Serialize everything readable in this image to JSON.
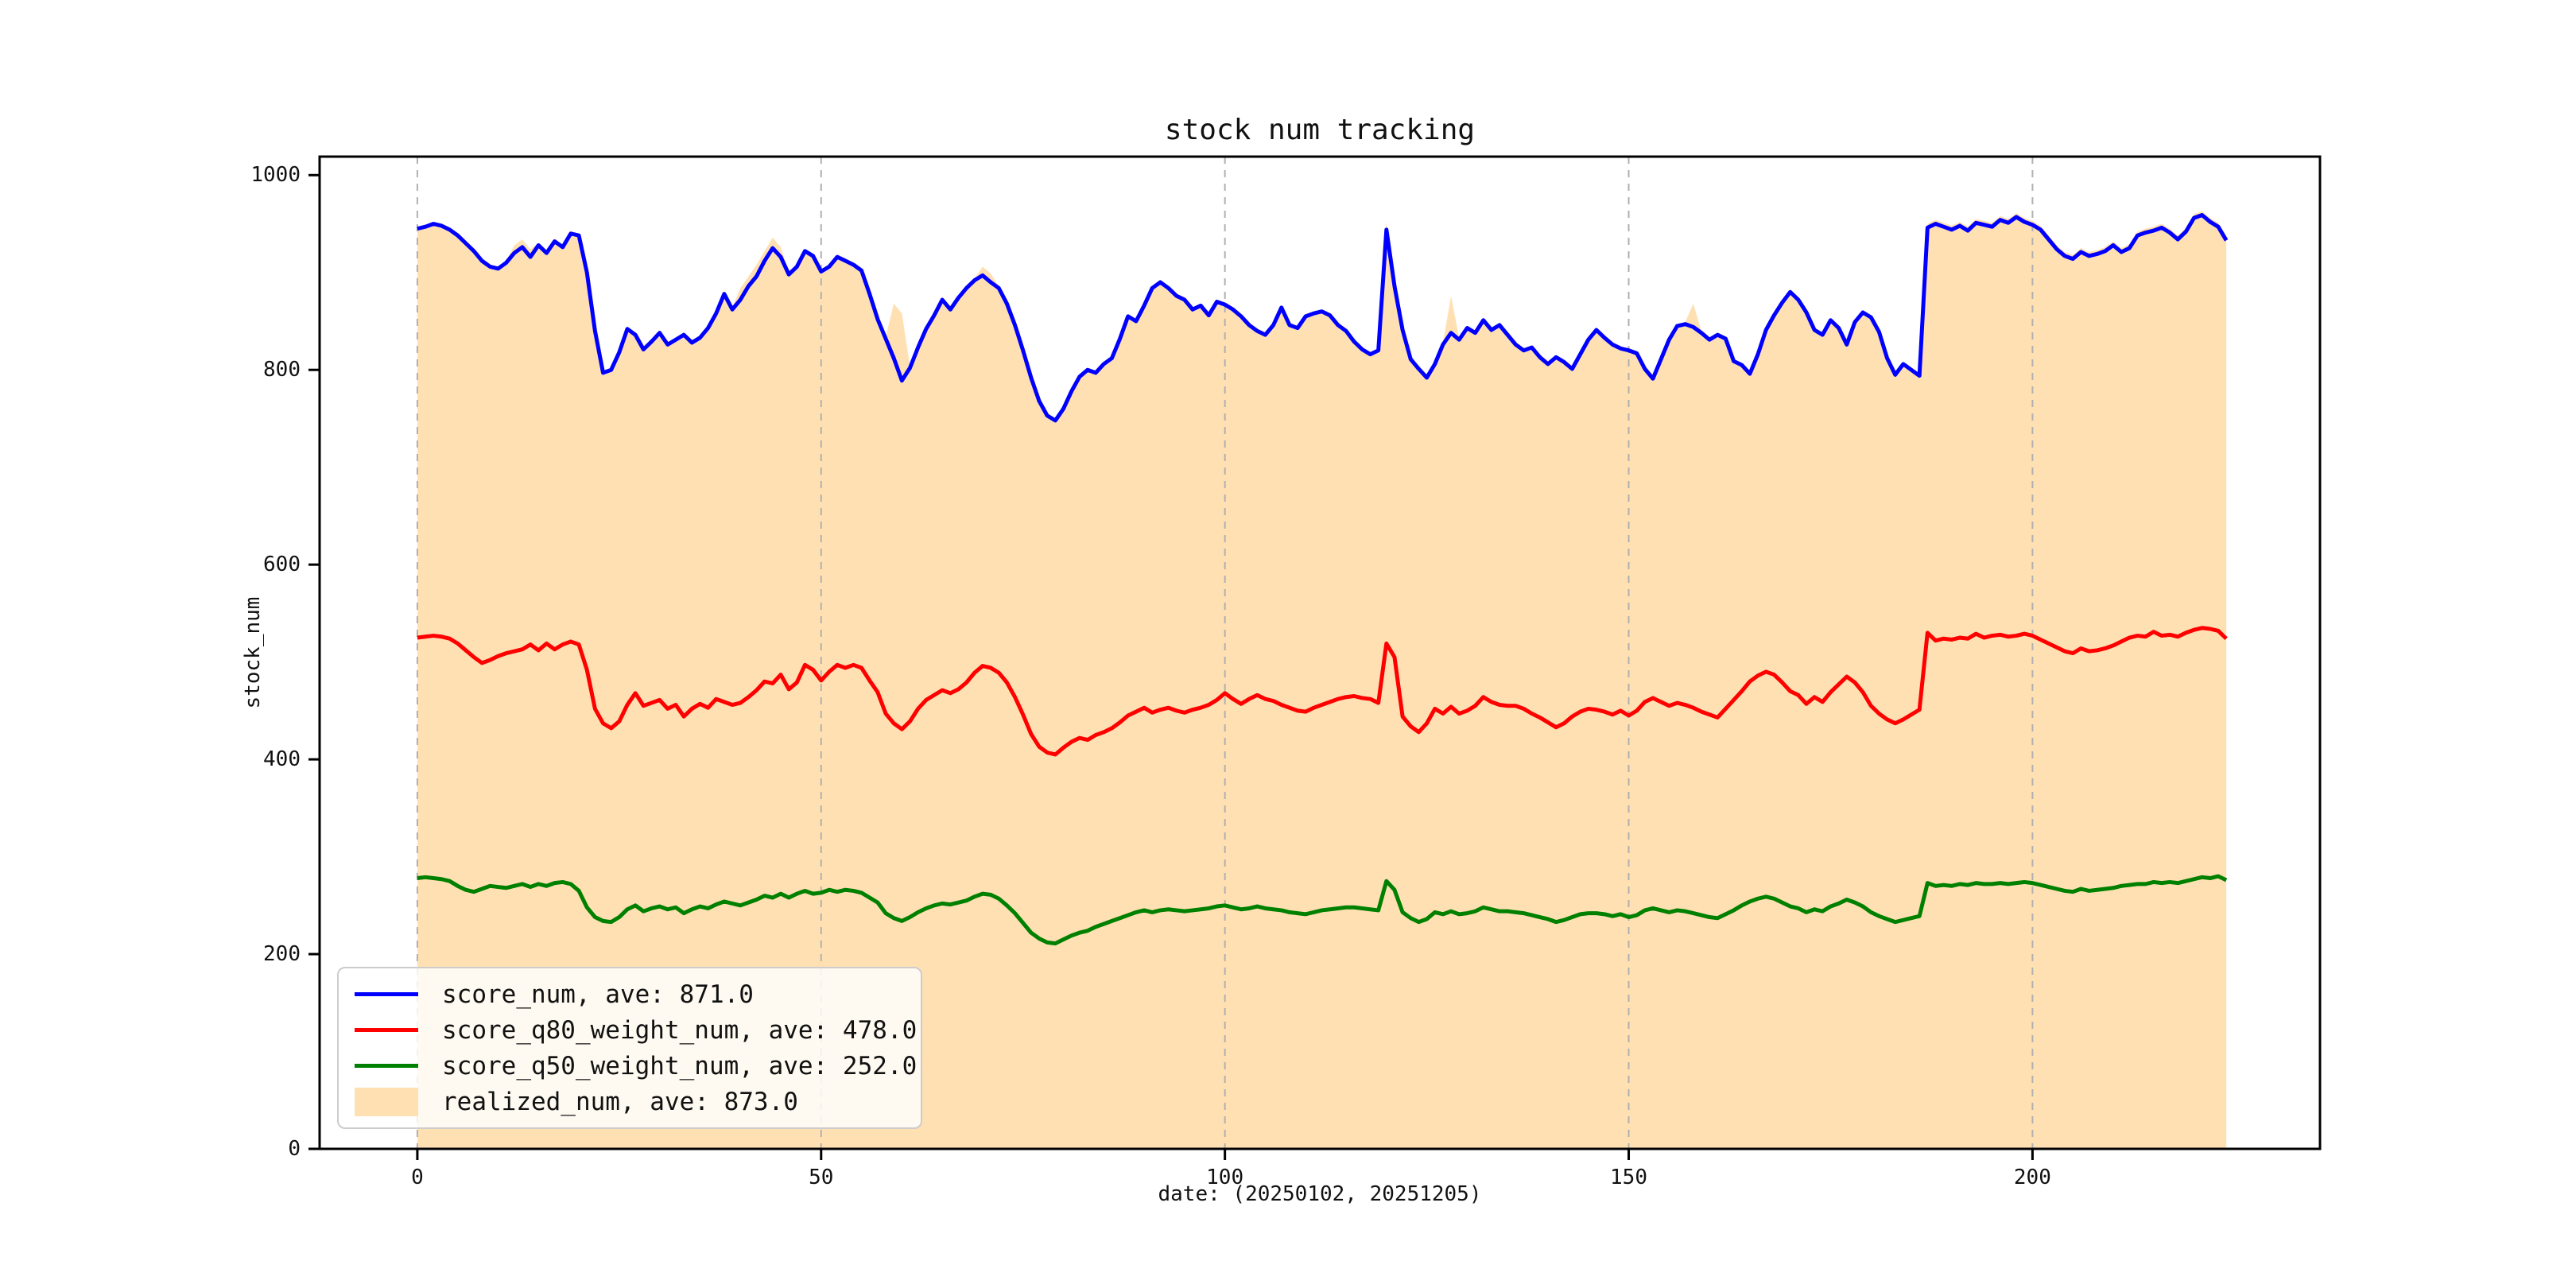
{
  "chart_data": {
    "type": "line",
    "title": "stock num tracking",
    "xlabel": "date: (20250102, 20251205)",
    "ylabel": "stock_num",
    "xlim": [
      -12.1,
      235.6
    ],
    "ylim": [
      0,
      1019
    ],
    "x_ticks": [
      0,
      50,
      100,
      150,
      200
    ],
    "y_ticks": [
      0,
      200,
      400,
      600,
      800,
      1000
    ],
    "grid": "vertical dashed gridlines at x ticks",
    "grid_color": "#b0b0b0",
    "legend_position": "lower left",
    "x_start": 0,
    "x_step": 1,
    "area": {
      "name": "realized_num",
      "legend_label": "realized_num, ave: 873.0",
      "ave": 873.0,
      "color": "#ffe0b3",
      "values": [
        947,
        949,
        952,
        950,
        946,
        940,
        932,
        924,
        914,
        908,
        906,
        912,
        928,
        934,
        924,
        930,
        922,
        934,
        928,
        942,
        940,
        902,
        842,
        799,
        802,
        820,
        844,
        838,
        823,
        831,
        840,
        828,
        833,
        838,
        830,
        835,
        845,
        860,
        880,
        864,
        884,
        896,
        908,
        922,
        936,
        926,
        900,
        908,
        924,
        919,
        903,
        908,
        918,
        914,
        910,
        904,
        880,
        854,
        834,
        868,
        858,
        804,
        825,
        844,
        858,
        874,
        864,
        876,
        886,
        894,
        906,
        899,
        886,
        870,
        848,
        822,
        794,
        770,
        755,
        750,
        762,
        780,
        795,
        802,
        799,
        808,
        814,
        834,
        857,
        852,
        868,
        886,
        892,
        886,
        878,
        874,
        864,
        868,
        858,
        872,
        869,
        864,
        857,
        848,
        842,
        838,
        848,
        866,
        848,
        845,
        857,
        860,
        862,
        858,
        848,
        842,
        831,
        823,
        818,
        822,
        952,
        888,
        843,
        813,
        803,
        794,
        808,
        828,
        876,
        833,
        845,
        840,
        853,
        843,
        848,
        838,
        828,
        822,
        825,
        815,
        808,
        815,
        810,
        803,
        818,
        833,
        843,
        835,
        828,
        824,
        822,
        819,
        803,
        793,
        813,
        833,
        847,
        849,
        868,
        840,
        833,
        838,
        834,
        811,
        807,
        798,
        818,
        843,
        858,
        871,
        882,
        874,
        861,
        843,
        838,
        853,
        845,
        828,
        851,
        861,
        856,
        841,
        814,
        797,
        808,
        802,
        796,
        950,
        954,
        951,
        948,
        952,
        947,
        955,
        953,
        951,
        958,
        955,
        961,
        956,
        953,
        948,
        938,
        928,
        921,
        918,
        925,
        921,
        923,
        926,
        932,
        925,
        929,
        942,
        945,
        947,
        950,
        945,
        938,
        946,
        960,
        963,
        956,
        951,
        937
      ]
    },
    "series": [
      {
        "name": "score_num",
        "legend_label": "score_num, ave: 871.0",
        "ave": 871.0,
        "color": "#0000ff",
        "values": [
          945,
          947,
          950,
          948,
          944,
          938,
          930,
          922,
          912,
          906,
          904,
          910,
          920,
          926,
          916,
          928,
          920,
          932,
          926,
          940,
          938,
          900,
          840,
          797,
          800,
          818,
          842,
          836,
          821,
          829,
          838,
          826,
          831,
          836,
          828,
          833,
          843,
          858,
          878,
          862,
          872,
          886,
          896,
          912,
          925,
          916,
          898,
          906,
          922,
          917,
          901,
          906,
          916,
          912,
          908,
          902,
          878,
          852,
          832,
          812,
          789,
          802,
          823,
          842,
          856,
          872,
          862,
          874,
          884,
          892,
          897,
          890,
          884,
          868,
          846,
          820,
          792,
          768,
          753,
          748,
          760,
          778,
          793,
          800,
          797,
          806,
          812,
          832,
          855,
          850,
          866,
          884,
          890,
          884,
          876,
          872,
          862,
          866,
          856,
          870,
          867,
          862,
          855,
          846,
          840,
          836,
          846,
          864,
          846,
          843,
          855,
          858,
          860,
          856,
          846,
          840,
          829,
          821,
          816,
          820,
          944,
          886,
          841,
          811,
          801,
          792,
          806,
          826,
          838,
          831,
          843,
          838,
          851,
          841,
          846,
          836,
          826,
          820,
          823,
          813,
          806,
          813,
          808,
          801,
          816,
          831,
          841,
          833,
          826,
          822,
          820,
          817,
          801,
          791,
          811,
          831,
          845,
          847,
          844,
          838,
          831,
          836,
          832,
          809,
          805,
          796,
          816,
          841,
          856,
          869,
          880,
          872,
          859,
          841,
          836,
          851,
          843,
          826,
          849,
          859,
          854,
          839,
          812,
          795,
          806,
          800,
          794,
          946,
          950,
          947,
          944,
          948,
          943,
          951,
          949,
          947,
          954,
          951,
          957,
          952,
          949,
          944,
          934,
          924,
          917,
          914,
          921,
          917,
          919,
          922,
          928,
          921,
          925,
          938,
          941,
          943,
          946,
          941,
          934,
          942,
          956,
          959,
          952,
          947,
          933
        ]
      },
      {
        "name": "score_q80_weight_num",
        "legend_label": "score_q80_weight_num, ave: 478.0",
        "ave": 478.0,
        "color": "#ff0000",
        "values": [
          525,
          526,
          527,
          526,
          524,
          519,
          512,
          505,
          499,
          502,
          506,
          509,
          511,
          513,
          518,
          512,
          519,
          513,
          518,
          521,
          518,
          492,
          452,
          437,
          432,
          439,
          456,
          468,
          455,
          458,
          461,
          452,
          456,
          444,
          452,
          457,
          453,
          462,
          459,
          456,
          458,
          464,
          471,
          480,
          478,
          487,
          472,
          479,
          497,
          492,
          481,
          490,
          497,
          494,
          497,
          494,
          481,
          469,
          447,
          437,
          431,
          439,
          452,
          461,
          466,
          471,
          468,
          472,
          479,
          489,
          496,
          494,
          489,
          479,
          464,
          446,
          426,
          413,
          407,
          405,
          412,
          418,
          422,
          420,
          425,
          428,
          432,
          438,
          445,
          449,
          453,
          448,
          451,
          453,
          450,
          448,
          451,
          453,
          456,
          461,
          468,
          462,
          457,
          462,
          466,
          462,
          460,
          456,
          453,
          450,
          449,
          453,
          456,
          459,
          462,
          464,
          465,
          463,
          462,
          458,
          519,
          505,
          444,
          434,
          428,
          437,
          452,
          447,
          454,
          447,
          450,
          455,
          464,
          459,
          456,
          455,
          455,
          452,
          447,
          443,
          438,
          433,
          437,
          444,
          449,
          452,
          451,
          449,
          446,
          450,
          445,
          450,
          459,
          463,
          459,
          455,
          458,
          456,
          453,
          449,
          446,
          443,
          452,
          461,
          470,
          480,
          486,
          490,
          487,
          479,
          470,
          466,
          457,
          464,
          459,
          469,
          477,
          485,
          479,
          469,
          455,
          447,
          441,
          437,
          441,
          446,
          451,
          530,
          522,
          524,
          523,
          525,
          524,
          529,
          525,
          527,
          528,
          526,
          527,
          529,
          527,
          523,
          519,
          515,
          511,
          509,
          514,
          511,
          512,
          514,
          517,
          521,
          525,
          527,
          526,
          531,
          527,
          528,
          526,
          530,
          533,
          535,
          534,
          532,
          524
        ]
      },
      {
        "name": "score_q50_weight_num",
        "legend_label": "score_q50_weight_num, ave: 252.0",
        "ave": 252.0,
        "color": "#008000",
        "values": [
          278,
          279,
          278,
          277,
          275,
          270,
          266,
          264,
          267,
          270,
          269,
          268,
          270,
          272,
          269,
          272,
          270,
          273,
          274,
          272,
          265,
          248,
          238,
          234,
          233,
          238,
          246,
          250,
          244,
          247,
          249,
          246,
          248,
          242,
          246,
          249,
          247,
          251,
          254,
          252,
          250,
          253,
          256,
          260,
          258,
          262,
          258,
          262,
          265,
          262,
          263,
          266,
          264,
          266,
          265,
          263,
          258,
          253,
          242,
          237,
          234,
          238,
          243,
          247,
          250,
          252,
          251,
          253,
          255,
          259,
          262,
          261,
          257,
          250,
          242,
          232,
          222,
          216,
          212,
          211,
          215,
          219,
          222,
          224,
          228,
          231,
          234,
          237,
          240,
          243,
          245,
          243,
          245,
          246,
          245,
          244,
          245,
          246,
          247,
          249,
          250,
          248,
          246,
          247,
          249,
          247,
          246,
          245,
          243,
          242,
          241,
          243,
          245,
          246,
          247,
          248,
          248,
          247,
          246,
          245,
          275,
          266,
          243,
          237,
          233,
          236,
          243,
          241,
          244,
          241,
          242,
          244,
          248,
          246,
          244,
          244,
          243,
          242,
          240,
          238,
          236,
          233,
          235,
          238,
          241,
          242,
          242,
          241,
          239,
          241,
          238,
          240,
          245,
          247,
          245,
          243,
          245,
          244,
          242,
          240,
          238,
          237,
          241,
          245,
          250,
          254,
          257,
          259,
          257,
          253,
          249,
          247,
          243,
          246,
          244,
          249,
          252,
          256,
          253,
          249,
          243,
          239,
          236,
          233,
          235,
          237,
          239,
          273,
          270,
          271,
          270,
          272,
          271,
          273,
          272,
          272,
          273,
          272,
          273,
          274,
          273,
          271,
          269,
          267,
          265,
          264,
          267,
          265,
          266,
          267,
          268,
          270,
          271,
          272,
          272,
          274,
          273,
          274,
          273,
          275,
          277,
          279,
          278,
          280,
          276
        ]
      }
    ]
  }
}
